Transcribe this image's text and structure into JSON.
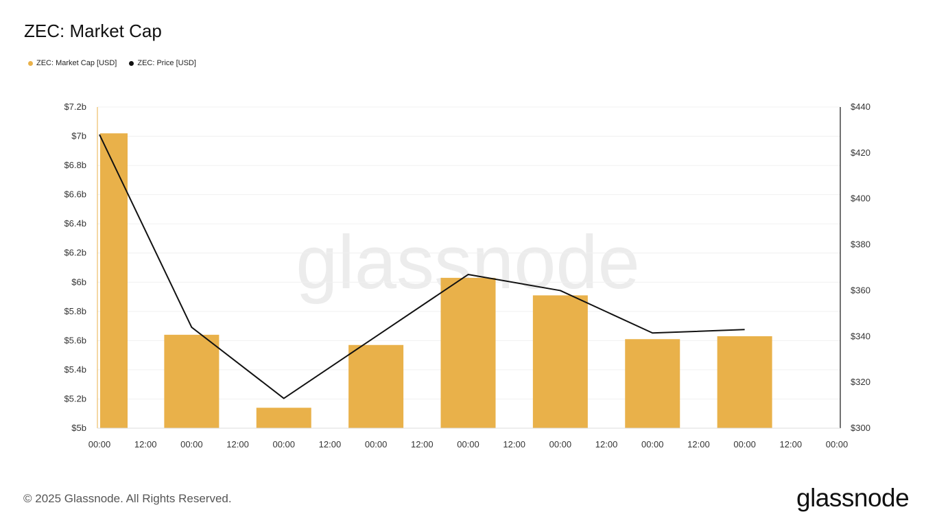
{
  "header": {
    "title": "ZEC: Market Cap"
  },
  "legend": [
    {
      "label": "ZEC: Market Cap [USD]",
      "color": "#e9b14a"
    },
    {
      "label": "ZEC: Price [USD]",
      "color": "#111111"
    }
  ],
  "watermark": "glassnode",
  "footer": {
    "copyright": "© 2025 Glassnode. All Rights Reserved.",
    "brand": "glassnode"
  },
  "chart_data": {
    "type": "bar",
    "title": "ZEC: Market Cap",
    "x_ticks": [
      "00:00",
      "12:00",
      "00:00",
      "12:00",
      "00:00",
      "12:00",
      "00:00",
      "12:00",
      "00:00",
      "12:00",
      "00:00",
      "12:00",
      "00:00",
      "12:00",
      "00:00",
      "12:00",
      "00:00"
    ],
    "left_axis": {
      "ticks": [
        "$7.2b",
        "$7b",
        "$6.8b",
        "$6.6b",
        "$6.4b",
        "$6.2b",
        "$6b",
        "$5.8b",
        "$5.6b",
        "$5.4b",
        "$5.2b",
        "$5b"
      ],
      "ylim": [
        5.0,
        7.2
      ],
      "unit": "billion USD"
    },
    "right_axis": {
      "ticks": [
        "$440",
        "$420",
        "$400",
        "$380",
        "$360",
        "$340",
        "$320",
        "$300"
      ],
      "ylim": [
        300,
        440
      ]
    },
    "series": [
      {
        "name": "ZEC: Market Cap [USD]",
        "kind": "bar",
        "axis": "left",
        "color": "#e9b14a",
        "values": [
          7.02,
          5.64,
          5.14,
          5.57,
          6.03,
          5.91,
          5.61,
          5.63
        ]
      },
      {
        "name": "ZEC: Price [USD]",
        "kind": "line",
        "axis": "right",
        "color": "#111111",
        "values": [
          428,
          344,
          313,
          340,
          367,
          360,
          341.5,
          343
        ]
      }
    ],
    "grid": true,
    "legend_position": "top-left"
  }
}
